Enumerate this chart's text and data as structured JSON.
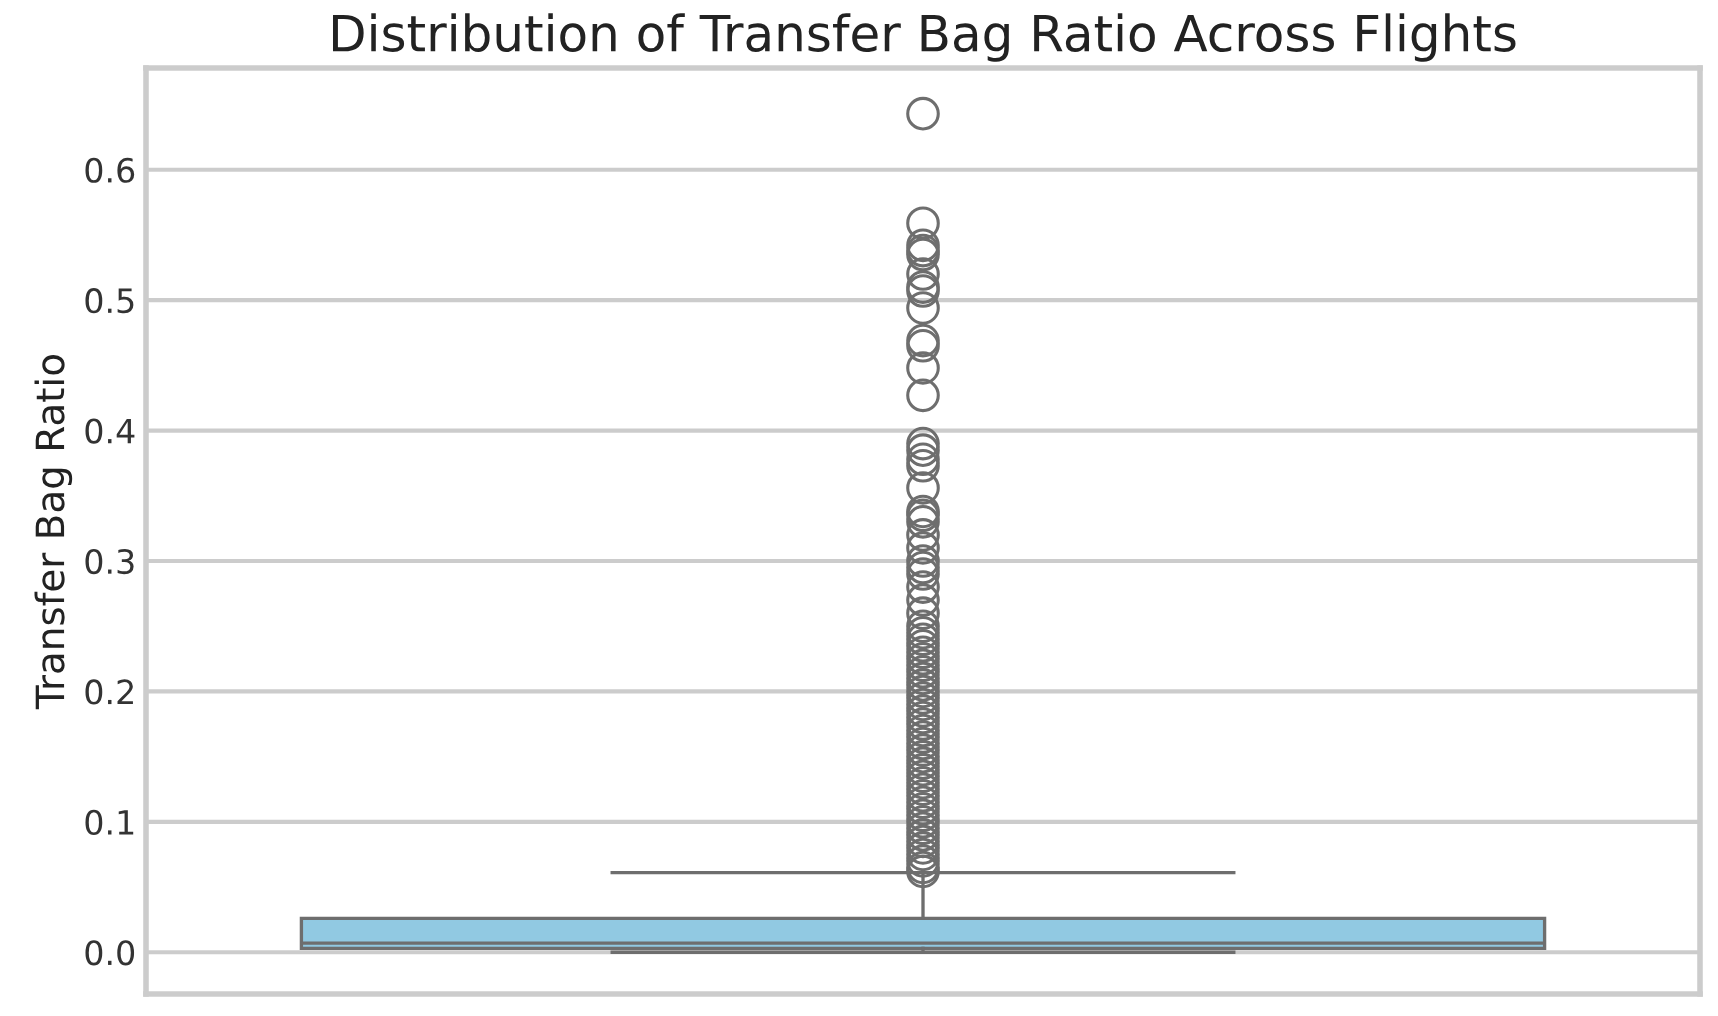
{
  "chart_data": {
    "type": "box",
    "title": "Distribution of Transfer Bag Ratio Across Flights",
    "ylabel": "Transfer Bag Ratio",
    "categories": [
      null
    ],
    "series": [
      {
        "color": "#91c9e2",
        "boxes": [
          {
            "low": 0.0,
            "q1": 0.003,
            "median": 0.007,
            "q3": 0.026,
            "high": 0.061,
            "outliers": [
              0.643,
              0.559,
              0.542,
              0.538,
              0.535,
              0.52,
              0.51,
              0.507,
              0.494,
              0.469,
              0.465,
              0.448,
              0.427,
              0.39,
              0.385,
              0.378,
              0.373,
              0.356,
              0.338,
              0.335,
              0.33,
              0.32,
              0.31,
              0.3,
              0.295,
              0.29,
              0.28,
              0.27,
              0.26,
              0.25,
              0.245,
              0.24,
              0.235,
              0.23,
              0.225,
              0.22,
              0.215,
              0.21,
              0.205,
              0.2,
              0.195,
              0.19,
              0.185,
              0.18,
              0.175,
              0.17,
              0.165,
              0.16,
              0.155,
              0.15,
              0.145,
              0.14,
              0.135,
              0.13,
              0.125,
              0.12,
              0.115,
              0.11,
              0.105,
              0.1,
              0.095,
              0.09,
              0.085,
              0.08,
              0.075,
              0.07,
              0.065,
              0.062
            ]
          }
        ]
      }
    ],
    "ylim": [
      -0.032,
      0.678
    ],
    "yticks": [
      {
        "value": 0.0,
        "label": "0.0"
      },
      0.1,
      0.2,
      0.3,
      0.4,
      0.5,
      0.6
    ],
    "grid": "y",
    "tick_labels": "y"
  }
}
